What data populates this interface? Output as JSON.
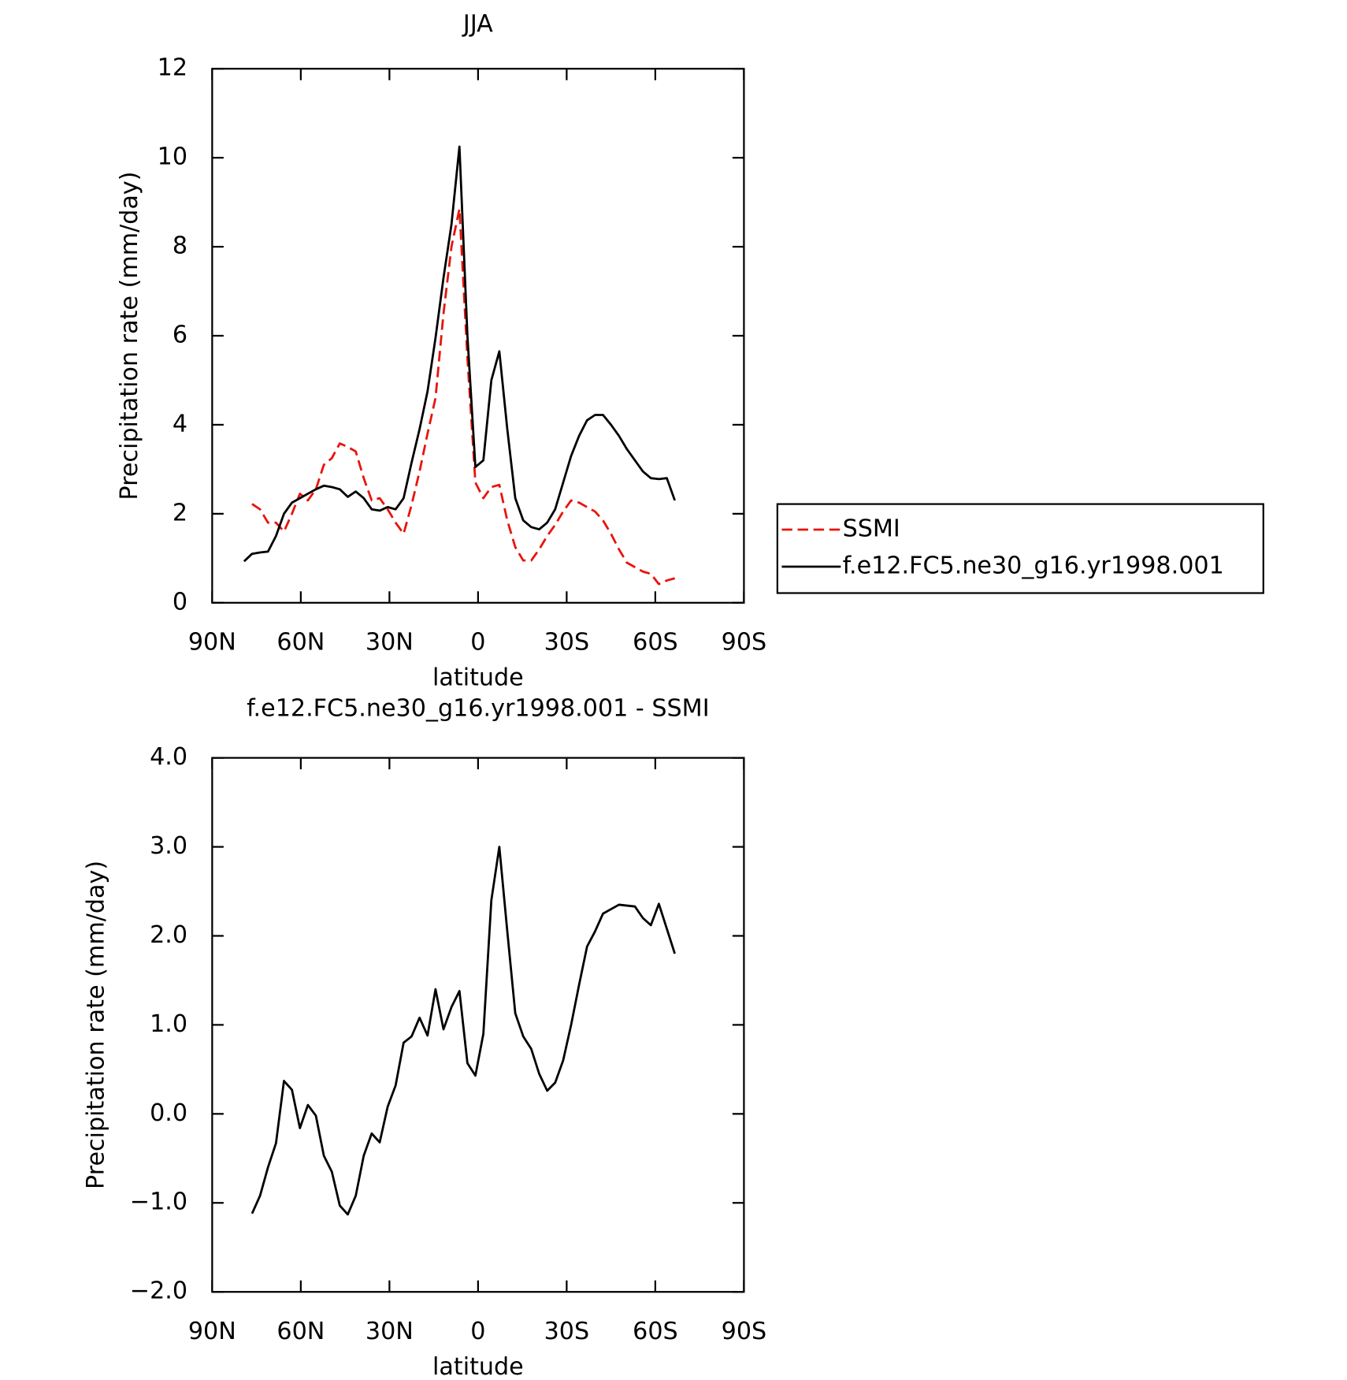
{
  "chart_data": [
    {
      "type": "line",
      "title": "JJA",
      "x_label": "latitude",
      "y_label": "Precipitation rate (mm/day)",
      "xlim": [
        90,
        -90
      ],
      "xticks": [
        {
          "value": 90,
          "label": "90N"
        },
        {
          "value": 60,
          "label": "60N"
        },
        {
          "value": 30,
          "label": "30N"
        },
        0,
        {
          "value": -30,
          "label": "30S"
        },
        {
          "value": -60,
          "label": "60S"
        },
        {
          "value": -90,
          "label": "90S"
        }
      ],
      "ylim": [
        0,
        12
      ],
      "yticks": [
        0,
        2,
        4,
        6,
        8,
        10,
        12
      ],
      "legend": "outside right",
      "x": [
        79.2,
        76.5,
        73.8,
        71.1,
        68.4,
        65.7,
        63,
        60.3,
        57.6,
        54.9,
        52.2,
        49.5,
        46.8,
        44.1,
        41.4,
        38.7,
        36,
        33.3,
        30.6,
        27.9,
        25.2,
        22.5,
        19.8,
        17.1,
        14.4,
        11.7,
        9,
        6.3,
        3.6,
        0.9,
        -1.8,
        -4.5,
        -7.2,
        -9.9,
        -12.6,
        -15.3,
        -18,
        -20.7,
        -23.4,
        -26.1,
        -28.8,
        -31.5,
        -34.2,
        -36.9,
        -39.6,
        -42.3,
        -45,
        -47.7,
        -50.4,
        -53.1,
        -55.8,
        -58.5,
        -61.2,
        -63.9,
        -66.6
      ],
      "series": [
        {
          "name": "SSMI",
          "color": "#e8140c",
          "dashed": true,
          "values": [
            null,
            2.22,
            2.1,
            1.8,
            1.8,
            1.6,
            2.0,
            2.45,
            2.3,
            2.55,
            3.1,
            3.25,
            3.58,
            3.5,
            3.4,
            2.8,
            2.3,
            2.35,
            2.1,
            1.8,
            1.55,
            2.2,
            2.95,
            3.8,
            4.6,
            6.5,
            8.0,
            8.85,
            5.5,
            2.7,
            2.35,
            2.6,
            2.65,
            1.85,
            1.25,
            0.95,
            0.95,
            1.2,
            1.5,
            1.75,
            2.05,
            2.3,
            2.25,
            2.15,
            2.05,
            1.85,
            1.55,
            1.2,
            0.9,
            0.8,
            0.7,
            0.65,
            0.42,
            0.5,
            0.55
          ]
        },
        {
          "name": "f.e12.FC5.ne30_g16.yr1998.001",
          "color": "#000000",
          "dashed": false,
          "values": [
            0.93,
            1.1,
            1.13,
            1.15,
            1.5,
            2.0,
            2.25,
            2.35,
            2.45,
            2.55,
            2.63,
            2.6,
            2.55,
            2.38,
            2.5,
            2.35,
            2.1,
            2.07,
            2.15,
            2.1,
            2.35,
            3.15,
            3.9,
            4.75,
            5.95,
            7.3,
            8.5,
            10.25,
            6.0,
            3.05,
            3.2,
            5.0,
            5.65,
            3.9,
            2.35,
            1.85,
            1.7,
            1.65,
            1.8,
            2.1,
            2.7,
            3.3,
            3.75,
            4.1,
            4.22,
            4.22,
            4.0,
            3.75,
            3.45,
            3.2,
            2.95,
            2.8,
            2.78,
            2.8,
            2.3
          ]
        }
      ]
    },
    {
      "type": "line",
      "title": "f.e12.FC5.ne30_g16.yr1998.001 - SSMI",
      "x_label": "latitude",
      "y_label": "Precipitation rate (mm/day)",
      "xlim": [
        90,
        -90
      ],
      "xticks": [
        {
          "value": 90,
          "label": "90N"
        },
        {
          "value": 60,
          "label": "60N"
        },
        {
          "value": 30,
          "label": "30N"
        },
        0,
        {
          "value": -30,
          "label": "30S"
        },
        {
          "value": -60,
          "label": "60S"
        },
        {
          "value": -90,
          "label": "90S"
        }
      ],
      "ylim": [
        -2,
        4
      ],
      "yticks": [
        {
          "value": -2,
          "label": "−2.0"
        },
        {
          "value": -1,
          "label": "−1.0"
        },
        {
          "value": 0,
          "label": "0.0"
        },
        {
          "value": 1,
          "label": "1.0"
        },
        {
          "value": 2,
          "label": "2.0"
        },
        {
          "value": 3,
          "label": "3.0"
        },
        {
          "value": 4,
          "label": "4.0"
        }
      ],
      "x": [
        79.2,
        76.5,
        73.8,
        71.1,
        68.4,
        65.7,
        63,
        60.3,
        57.6,
        54.9,
        52.2,
        49.5,
        46.8,
        44.1,
        41.4,
        38.7,
        36,
        33.3,
        30.6,
        27.9,
        25.2,
        22.5,
        19.8,
        17.1,
        14.4,
        11.7,
        9,
        6.3,
        3.6,
        0.9,
        -1.8,
        -4.5,
        -7.2,
        -9.9,
        -12.6,
        -15.3,
        -18,
        -20.7,
        -23.4,
        -26.1,
        -28.8,
        -31.5,
        -34.2,
        -36.9,
        -39.6,
        -42.3,
        -45,
        -47.7,
        -50.4,
        -53.1,
        -55.8,
        -58.5,
        -61.2,
        -63.9,
        -66.6
      ],
      "series": [
        {
          "color": "#000000",
          "dashed": false,
          "values": [
            null,
            -1.12,
            -0.92,
            -0.6,
            -0.33,
            0.37,
            0.27,
            -0.16,
            0.1,
            -0.02,
            -0.47,
            -0.65,
            -1.03,
            -1.13,
            -0.92,
            -0.47,
            -0.22,
            -0.32,
            0.08,
            0.32,
            0.8,
            0.87,
            1.08,
            0.88,
            1.4,
            0.95,
            1.2,
            1.38,
            0.57,
            0.43,
            0.9,
            2.4,
            3.0,
            2.05,
            1.13,
            0.87,
            0.73,
            0.45,
            0.26,
            0.35,
            0.6,
            1.0,
            1.45,
            1.88,
            2.05,
            2.25,
            2.3,
            2.35,
            2.34,
            2.33,
            2.2,
            2.12,
            2.36,
            2.08,
            1.8
          ]
        }
      ]
    }
  ]
}
